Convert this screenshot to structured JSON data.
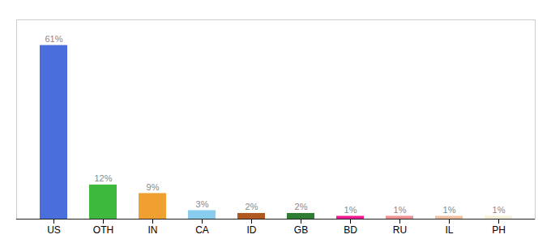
{
  "chart_data": {
    "type": "bar",
    "categories": [
      "US",
      "OTH",
      "IN",
      "CA",
      "ID",
      "GB",
      "BD",
      "RU",
      "IL",
      "PH"
    ],
    "values": [
      61,
      12,
      9,
      3,
      2,
      2,
      1,
      1,
      1,
      1
    ],
    "value_labels": [
      "61%",
      "12%",
      "9%",
      "3%",
      "2%",
      "2%",
      "1%",
      "1%",
      "1%",
      "1%"
    ],
    "colors": [
      "#4a6fdc",
      "#3db93d",
      "#f0a030",
      "#88ccee",
      "#b05820",
      "#2e7d32",
      "#f01890",
      "#f09090",
      "#f0c0a0",
      "#f5f0d8"
    ],
    "ylim": [
      0,
      70
    ],
    "data_labels": true,
    "tick_labels": "x"
  }
}
